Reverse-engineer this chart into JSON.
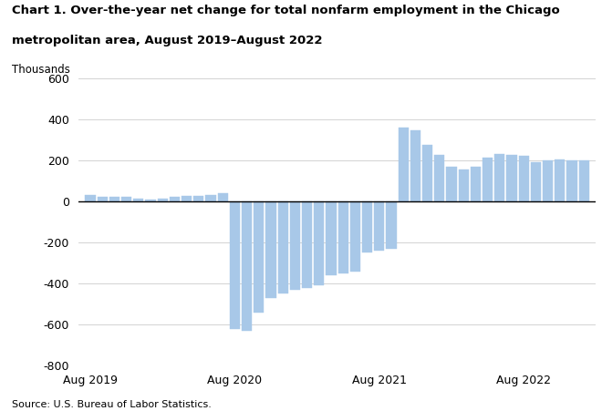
{
  "title_line1": "Chart 1. Over-the-year net change for total nonfarm employment in the Chicago",
  "title_line2": "metropolitan area, August 2019–August 2022",
  "thousands_label": "Thousands",
  "source": "Source: U.S. Bureau of Labor Statistics.",
  "bar_color": "#a8c8e8",
  "ylim": [
    -800,
    600
  ],
  "yticks": [
    -800,
    -600,
    -400,
    -200,
    0,
    200,
    400,
    600
  ],
  "x_tick_labels": [
    "Aug 2019",
    "Aug 2020",
    "Aug 2021",
    "Aug 2022"
  ],
  "x_tick_positions": [
    0,
    12,
    24,
    36
  ],
  "values": [
    30,
    20,
    20,
    20,
    15,
    10,
    15,
    20,
    25,
    25,
    30,
    40,
    -620,
    -630,
    -540,
    -470,
    -450,
    -430,
    -420,
    -410,
    -360,
    -350,
    -340,
    -250,
    -240,
    -230,
    360,
    345,
    275,
    225,
    170,
    155,
    170,
    215,
    230,
    225,
    220,
    190,
    200,
    205,
    200,
    200
  ]
}
